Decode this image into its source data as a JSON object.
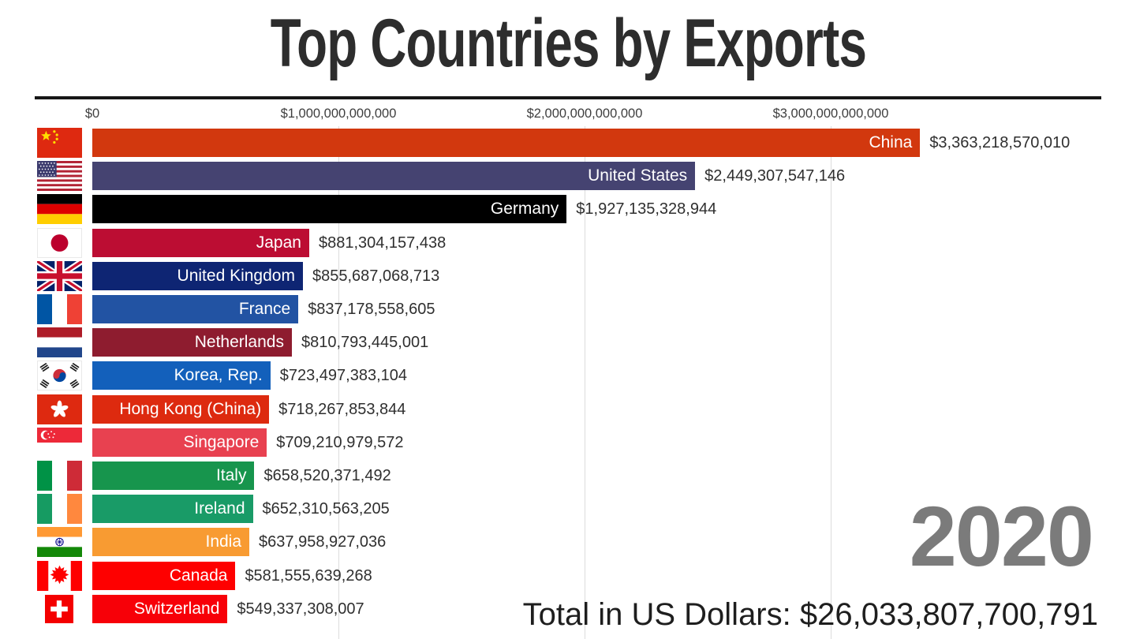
{
  "chart_data": {
    "type": "bar",
    "orientation": "horizontal",
    "title": "Top Countries by Exports",
    "year": "2020",
    "total_label": "Total in US Dollars: $26,033,807,700,791",
    "unit": "US Dollars",
    "xlim": [
      0,
      3400000000000
    ],
    "grid": true,
    "legend": "none",
    "x_ticks": [
      {
        "value": 0,
        "label": "$0"
      },
      {
        "value": 1000000000000,
        "label": "$1,000,000,000,000"
      },
      {
        "value": 2000000000000,
        "label": "$2,000,000,000,000"
      },
      {
        "value": 3000000000000,
        "label": "$3,000,000,000,000"
      }
    ],
    "bars": [
      {
        "country": "China",
        "value": 3363218570010,
        "value_label": "$3,363,218,570,010",
        "color": "#d2380e",
        "flag": "china"
      },
      {
        "country": "United States",
        "value": 2449307547146,
        "value_label": "$2,449,307,547,146",
        "color": "#454371",
        "flag": "united-states"
      },
      {
        "country": "Germany",
        "value": 1927135328944,
        "value_label": "$1,927,135,328,944",
        "color": "#000000",
        "flag": "germany"
      },
      {
        "country": "Japan",
        "value": 881304157438,
        "value_label": "$881,304,157,438",
        "color": "#bc0d33",
        "flag": "japan"
      },
      {
        "country": "United Kingdom",
        "value": 855687068713,
        "value_label": "$855,687,068,713",
        "color": "#0e2573",
        "flag": "united-kingdom"
      },
      {
        "country": "France",
        "value": 837178558605,
        "value_label": "$837,178,558,605",
        "color": "#2253a3",
        "flag": "france"
      },
      {
        "country": "Netherlands",
        "value": 810793445001,
        "value_label": "$810,793,445,001",
        "color": "#8e1c2f",
        "flag": "netherlands"
      },
      {
        "country": "Korea, Rep.",
        "value": 723497383104,
        "value_label": "$723,497,383,104",
        "color": "#1360bb",
        "flag": "korea"
      },
      {
        "country": "Hong Kong (China)",
        "value": 718267853844,
        "value_label": "$718,267,853,844",
        "color": "#dd2a0f",
        "flag": "hong-kong"
      },
      {
        "country": "Singapore",
        "value": 709210979572,
        "value_label": "$709,210,979,572",
        "color": "#e84150",
        "flag": "singapore"
      },
      {
        "country": "Italy",
        "value": 658520371492,
        "value_label": "$658,520,371,492",
        "color": "#17954d",
        "flag": "italy"
      },
      {
        "country": "Ireland",
        "value": 652310563205,
        "value_label": "$652,310,563,205",
        "color": "#199b67",
        "flag": "ireland"
      },
      {
        "country": "India",
        "value": 637958927036,
        "value_label": "$637,958,927,036",
        "color": "#f89b32",
        "flag": "india"
      },
      {
        "country": "Canada",
        "value": 581555639268,
        "value_label": "$581,555,639,268",
        "color": "#fe0000",
        "flag": "canada"
      },
      {
        "country": "Switzerland",
        "value": 549337308007,
        "value_label": "$549,337,308,007",
        "color": "#f70008",
        "flag": "switzerland"
      }
    ]
  }
}
